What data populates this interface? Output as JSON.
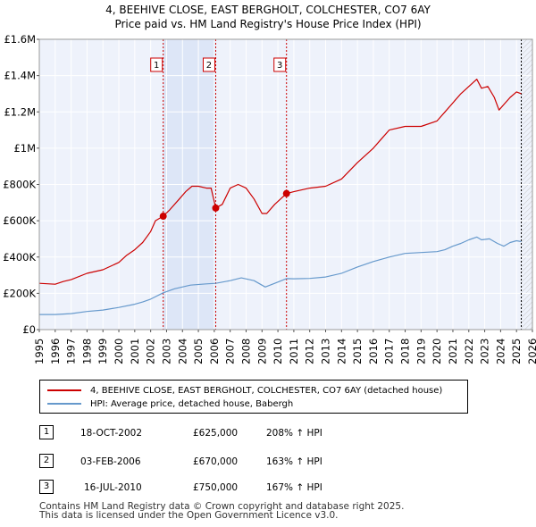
{
  "title_line1": "4, BEEHIVE CLOSE, EAST BERGHOLT, COLCHESTER, CO7 6AY",
  "title_line2": "Price paid vs. HM Land Registry's House Price Index (HPI)",
  "colors": {
    "property": "#cc0000",
    "hpi": "#6699cc",
    "band": "#dde6f7"
  },
  "chart_data": {
    "type": "line",
    "title": "Price paid vs. HM Land Registry's House Price Index (HPI)",
    "xlabel": "",
    "ylabel": "",
    "xlim": [
      1995,
      2026
    ],
    "ylim": [
      0,
      1600000
    ],
    "y_ticks": [
      0,
      200000,
      400000,
      600000,
      800000,
      1000000,
      1200000,
      1400000,
      1600000
    ],
    "y_tick_labels": [
      "£0",
      "£200K",
      "£400K",
      "£600K",
      "£800K",
      "£1M",
      "£1.2M",
      "£1.4M",
      "£1.6M"
    ],
    "x_ticks": [
      1995,
      1996,
      1997,
      1998,
      1999,
      2000,
      2001,
      2002,
      2003,
      2004,
      2005,
      2006,
      2007,
      2008,
      2009,
      2010,
      2011,
      2012,
      2013,
      2014,
      2015,
      2016,
      2017,
      2018,
      2019,
      2020,
      2021,
      2022,
      2023,
      2024,
      2025,
      2026
    ],
    "grid": true,
    "series": [
      {
        "name": "4, BEEHIVE CLOSE, EAST BERGHOLT, COLCHESTER, CO7 6AY (detached house)",
        "points": [
          [
            1995.0,
            255000
          ],
          [
            1996.0,
            250000
          ],
          [
            1996.5,
            265000
          ],
          [
            1997.0,
            275000
          ],
          [
            1998.0,
            310000
          ],
          [
            1999.0,
            330000
          ],
          [
            2000.0,
            370000
          ],
          [
            2000.5,
            410000
          ],
          [
            2001.0,
            440000
          ],
          [
            2001.5,
            480000
          ],
          [
            2002.0,
            540000
          ],
          [
            2002.3,
            600000
          ],
          [
            2002.79,
            625000
          ],
          [
            2003.2,
            660000
          ],
          [
            2003.8,
            720000
          ],
          [
            2004.2,
            760000
          ],
          [
            2004.6,
            790000
          ],
          [
            2005.0,
            790000
          ],
          [
            2005.5,
            780000
          ],
          [
            2005.8,
            780000
          ],
          [
            2006.09,
            670000
          ],
          [
            2006.5,
            690000
          ],
          [
            2007.0,
            780000
          ],
          [
            2007.5,
            800000
          ],
          [
            2008.0,
            780000
          ],
          [
            2008.5,
            720000
          ],
          [
            2009.0,
            640000
          ],
          [
            2009.3,
            640000
          ],
          [
            2009.8,
            690000
          ],
          [
            2010.54,
            750000
          ],
          [
            2011.0,
            760000
          ],
          [
            2011.5,
            770000
          ],
          [
            2012.0,
            780000
          ],
          [
            2013.0,
            790000
          ],
          [
            2014.0,
            830000
          ],
          [
            2015.0,
            920000
          ],
          [
            2016.0,
            1000000
          ],
          [
            2016.5,
            1050000
          ],
          [
            2017.0,
            1100000
          ],
          [
            2018.0,
            1120000
          ],
          [
            2019.0,
            1120000
          ],
          [
            2020.0,
            1150000
          ],
          [
            2020.5,
            1200000
          ],
          [
            2021.0,
            1250000
          ],
          [
            2021.5,
            1300000
          ],
          [
            2022.0,
            1340000
          ],
          [
            2022.5,
            1380000
          ],
          [
            2022.8,
            1330000
          ],
          [
            2023.2,
            1340000
          ],
          [
            2023.6,
            1280000
          ],
          [
            2023.9,
            1210000
          ],
          [
            2024.2,
            1240000
          ],
          [
            2024.6,
            1280000
          ],
          [
            2025.0,
            1310000
          ],
          [
            2025.3,
            1300000
          ]
        ]
      },
      {
        "name": "HPI: Average price, detached house, Babergh",
        "points": [
          [
            1995.0,
            83000
          ],
          [
            1996.0,
            83000
          ],
          [
            1997.0,
            88000
          ],
          [
            1998.0,
            100000
          ],
          [
            1999.0,
            108000
          ],
          [
            2000.0,
            122000
          ],
          [
            2001.0,
            140000
          ],
          [
            2001.5,
            152000
          ],
          [
            2002.0,
            168000
          ],
          [
            2002.79,
            203000
          ],
          [
            2003.5,
            225000
          ],
          [
            2004.5,
            245000
          ],
          [
            2005.5,
            252000
          ],
          [
            2006.09,
            255000
          ],
          [
            2007.0,
            270000
          ],
          [
            2007.7,
            285000
          ],
          [
            2008.5,
            270000
          ],
          [
            2009.2,
            235000
          ],
          [
            2009.8,
            255000
          ],
          [
            2010.54,
            281000
          ],
          [
            2011.0,
            280000
          ],
          [
            2012.0,
            282000
          ],
          [
            2013.0,
            290000
          ],
          [
            2014.0,
            310000
          ],
          [
            2015.0,
            345000
          ],
          [
            2016.0,
            375000
          ],
          [
            2017.0,
            400000
          ],
          [
            2018.0,
            420000
          ],
          [
            2019.0,
            425000
          ],
          [
            2020.0,
            430000
          ],
          [
            2020.5,
            440000
          ],
          [
            2021.0,
            460000
          ],
          [
            2021.5,
            475000
          ],
          [
            2022.0,
            495000
          ],
          [
            2022.5,
            510000
          ],
          [
            2022.8,
            495000
          ],
          [
            2023.3,
            500000
          ],
          [
            2023.8,
            475000
          ],
          [
            2024.2,
            460000
          ],
          [
            2024.6,
            480000
          ],
          [
            2025.0,
            490000
          ],
          [
            2025.3,
            485000
          ]
        ]
      }
    ],
    "sales": [
      {
        "label": "1",
        "year": 2002.79,
        "price": 625000
      },
      {
        "label": "2",
        "year": 2006.09,
        "price": 670000
      },
      {
        "label": "3",
        "year": 2010.54,
        "price": 750000
      }
    ],
    "shaded_periods": [
      [
        2002.79,
        2006.09
      ]
    ],
    "forecast_start": 2025.3
  },
  "legend": {
    "property": "4, BEEHIVE CLOSE, EAST BERGHOLT, COLCHESTER, CO7 6AY (detached house)",
    "hpi": "HPI: Average price, detached house, Babergh"
  },
  "sales_table": [
    {
      "num": "1",
      "date": "18-OCT-2002",
      "price": "£625,000",
      "change": "208% ↑ HPI"
    },
    {
      "num": "2",
      "date": "03-FEB-2006",
      "price": "£670,000",
      "change": "163% ↑ HPI"
    },
    {
      "num": "3",
      "date": "16-JUL-2010",
      "price": "£750,000",
      "change": "167% ↑ HPI"
    }
  ],
  "footer_line1": "Contains HM Land Registry data © Crown copyright and database right 2025.",
  "footer_line2": "This data is licensed under the Open Government Licence v3.0."
}
